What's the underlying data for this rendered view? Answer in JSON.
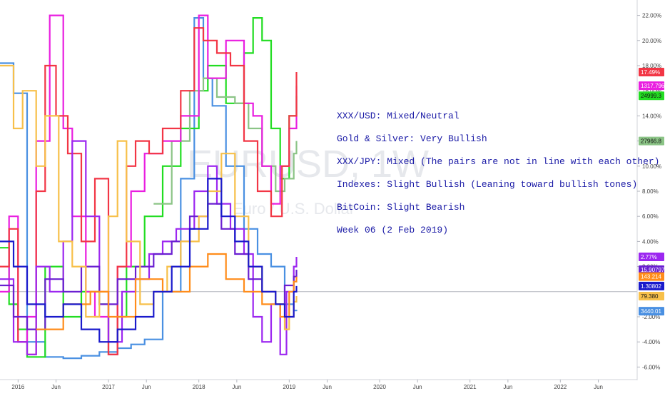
{
  "watermark": {
    "symbol": "EURUSD, 1W",
    "description": "Euro / U.S. Dollar"
  },
  "annotations": [
    "XXX/USD: Mixed/Neutral",
    "Gold & Silver: Very Bullish",
    "XXX/JPY: Mixed (The pairs are not in line with each other)",
    "Indexes: Slight Bullish (Leaning toward bullish tones)",
    "BitCoin: Slight Bearish",
    "Week 06 (2 Feb 2019)"
  ],
  "chart_data": {
    "type": "line",
    "y_axis": {
      "unit": "%",
      "range": [
        -7,
        23
      ],
      "tick_labels": [
        "22.00%",
        "20.00%",
        "18.00%",
        "16.00%",
        "14.00%",
        "12.00%",
        "10.00%",
        "8.00%",
        "6.00%",
        "4.00%",
        "2.00%",
        "-2.00%",
        "-4.00%",
        "-6.00%"
      ],
      "tick_values": [
        22,
        20,
        18,
        16,
        14,
        12,
        10,
        8,
        6,
        4,
        2,
        -2,
        -4,
        -6
      ]
    },
    "x_axis": {
      "range": [
        2015.8,
        2022.85
      ],
      "tick_labels": [
        "2016",
        "Jun",
        "2017",
        "Jun",
        "2018",
        "Jun",
        "2019",
        "Jun",
        "2020",
        "Jun",
        "2021",
        "Jun",
        "2022",
        "Jun"
      ],
      "tick_values": [
        2016.0,
        2016.42,
        2017.0,
        2017.42,
        2018.0,
        2018.42,
        2019.0,
        2019.42,
        2020.0,
        2020.42,
        2021.0,
        2021.42,
        2022.0,
        2022.42
      ]
    },
    "zero_line": 0,
    "price_badges": [
      {
        "label": "17.49%",
        "y": 17.49,
        "color": "#f23645"
      },
      {
        "label": "1317.796",
        "y": 16.4,
        "color": "#e91ee0"
      },
      {
        "label": "24999.3",
        "y": 15.6,
        "color": "#22dd22"
      },
      {
        "label": "27966.8",
        "y": 12.0,
        "color": "#8bc486"
      },
      {
        "label": "2.77%",
        "y": 2.77,
        "color": "#9c27f0"
      },
      {
        "label": "15.90797",
        "y": 1.75,
        "color": "#6a1fd1"
      },
      {
        "label": "143.214",
        "y": 1.2,
        "color": "#ff8c1a"
      },
      {
        "label": "1.30802",
        "y": 0.45,
        "color": "#1a1acc"
      },
      {
        "label": "79.380",
        "y": -0.35,
        "color": "#f7c04a"
      },
      {
        "label": "3440.01",
        "y": -1.55,
        "color": "#4a90e2"
      }
    ],
    "series": [
      {
        "color": "#4a90e2",
        "values": [
          [
            2015.8,
            18.2
          ],
          [
            2015.95,
            15.8
          ],
          [
            2016.1,
            -4
          ],
          [
            2016.3,
            -5.2
          ],
          [
            2016.5,
            -5.3
          ],
          [
            2016.7,
            -5.1
          ],
          [
            2016.9,
            -4.8
          ],
          [
            2017.1,
            -4.5
          ],
          [
            2017.25,
            -4.2
          ],
          [
            2017.4,
            -3.8
          ],
          [
            2017.6,
            0
          ],
          [
            2017.8,
            9
          ],
          [
            2017.95,
            21.8
          ],
          [
            2018.05,
            17
          ],
          [
            2018.15,
            14.8
          ],
          [
            2018.3,
            10
          ],
          [
            2018.5,
            5
          ],
          [
            2018.65,
            3
          ],
          [
            2018.8,
            2
          ],
          [
            2018.95,
            -1
          ],
          [
            2019.05,
            -1.5
          ],
          [
            2019.08,
            -1.55
          ]
        ]
      },
      {
        "color": "#22dd22",
        "values": [
          [
            2015.8,
            3.5
          ],
          [
            2015.9,
            -1
          ],
          [
            2016.0,
            -3
          ],
          [
            2016.1,
            -5.2
          ],
          [
            2016.3,
            2
          ],
          [
            2016.5,
            -2
          ],
          [
            2016.7,
            0
          ],
          [
            2016.9,
            -1
          ],
          [
            2017.0,
            -5
          ],
          [
            2017.1,
            -2
          ],
          [
            2017.2,
            2
          ],
          [
            2017.4,
            6
          ],
          [
            2017.6,
            10
          ],
          [
            2017.8,
            13
          ],
          [
            2018.0,
            16
          ],
          [
            2018.1,
            18
          ],
          [
            2018.3,
            15
          ],
          [
            2018.5,
            19
          ],
          [
            2018.6,
            21.8
          ],
          [
            2018.7,
            20
          ],
          [
            2018.8,
            13
          ],
          [
            2018.9,
            9
          ],
          [
            2019.0,
            14
          ],
          [
            2019.08,
            15.6
          ]
        ]
      },
      {
        "color": "#8bc486",
        "values": [
          [
            2017.5,
            7
          ],
          [
            2017.7,
            12
          ],
          [
            2017.9,
            16
          ],
          [
            2018.05,
            17
          ],
          [
            2018.2,
            15.5
          ],
          [
            2018.4,
            15
          ],
          [
            2018.55,
            13
          ],
          [
            2018.7,
            10
          ],
          [
            2018.85,
            8
          ],
          [
            2018.95,
            9
          ],
          [
            2019.05,
            11
          ],
          [
            2019.08,
            12.0
          ]
        ]
      },
      {
        "color": "#e91ee0",
        "values": [
          [
            2015.8,
            0
          ],
          [
            2015.9,
            6
          ],
          [
            2016.0,
            -4
          ],
          [
            2016.1,
            -2
          ],
          [
            2016.2,
            12
          ],
          [
            2016.35,
            22
          ],
          [
            2016.5,
            13
          ],
          [
            2016.6,
            6
          ],
          [
            2016.75,
            0
          ],
          [
            2016.85,
            -2
          ],
          [
            2017.0,
            -5
          ],
          [
            2017.1,
            2
          ],
          [
            2017.25,
            8
          ],
          [
            2017.4,
            11
          ],
          [
            2017.6,
            12
          ],
          [
            2017.8,
            14
          ],
          [
            2018.0,
            22
          ],
          [
            2018.1,
            17
          ],
          [
            2018.3,
            20
          ],
          [
            2018.5,
            15
          ],
          [
            2018.6,
            14
          ],
          [
            2018.7,
            10
          ],
          [
            2018.8,
            7
          ],
          [
            2018.9,
            10
          ],
          [
            2019.0,
            13
          ],
          [
            2019.08,
            16.4
          ]
        ]
      },
      {
        "color": "#f23645",
        "values": [
          [
            2015.8,
            2
          ],
          [
            2015.9,
            5
          ],
          [
            2016.0,
            -4
          ],
          [
            2016.1,
            -5
          ],
          [
            2016.2,
            8
          ],
          [
            2016.3,
            18
          ],
          [
            2016.42,
            14
          ],
          [
            2016.55,
            11
          ],
          [
            2016.7,
            4
          ],
          [
            2016.85,
            9
          ],
          [
            2017.0,
            -5
          ],
          [
            2017.1,
            2
          ],
          [
            2017.2,
            10
          ],
          [
            2017.3,
            12
          ],
          [
            2017.45,
            11
          ],
          [
            2017.6,
            13
          ],
          [
            2017.8,
            16
          ],
          [
            2017.95,
            21
          ],
          [
            2018.05,
            20
          ],
          [
            2018.2,
            19
          ],
          [
            2018.35,
            18
          ],
          [
            2018.5,
            12
          ],
          [
            2018.65,
            8
          ],
          [
            2018.8,
            6
          ],
          [
            2018.92,
            10
          ],
          [
            2019.0,
            14
          ],
          [
            2019.08,
            17.49
          ]
        ]
      },
      {
        "color": "#9c27f0",
        "values": [
          [
            2015.8,
            1
          ],
          [
            2015.95,
            -4
          ],
          [
            2016.1,
            -5
          ],
          [
            2016.2,
            2
          ],
          [
            2016.35,
            0
          ],
          [
            2016.5,
            4
          ],
          [
            2016.6,
            12
          ],
          [
            2016.75,
            6
          ],
          [
            2016.9,
            0
          ],
          [
            2017.0,
            -4
          ],
          [
            2017.15,
            0
          ],
          [
            2017.3,
            1
          ],
          [
            2017.45,
            3
          ],
          [
            2017.6,
            4
          ],
          [
            2017.75,
            5
          ],
          [
            2017.95,
            8
          ],
          [
            2018.1,
            10
          ],
          [
            2018.2,
            7
          ],
          [
            2018.35,
            5
          ],
          [
            2018.5,
            3
          ],
          [
            2018.6,
            -2
          ],
          [
            2018.7,
            -4
          ],
          [
            2018.8,
            -1
          ],
          [
            2018.9,
            -5
          ],
          [
            2018.97,
            0
          ],
          [
            2019.05,
            2
          ],
          [
            2019.08,
            2.77
          ]
        ]
      },
      {
        "color": "#6a1fd1",
        "values": [
          [
            2015.8,
            0.5
          ],
          [
            2015.95,
            -2
          ],
          [
            2016.1,
            -3
          ],
          [
            2016.3,
            1
          ],
          [
            2016.5,
            0
          ],
          [
            2016.7,
            2
          ],
          [
            2016.9,
            -1
          ],
          [
            2017.1,
            1
          ],
          [
            2017.3,
            2
          ],
          [
            2017.5,
            3
          ],
          [
            2017.7,
            4
          ],
          [
            2017.9,
            6
          ],
          [
            2018.1,
            7
          ],
          [
            2018.25,
            5
          ],
          [
            2018.4,
            3
          ],
          [
            2018.55,
            1
          ],
          [
            2018.7,
            0
          ],
          [
            2018.85,
            -1
          ],
          [
            2018.95,
            0.5
          ],
          [
            2019.05,
            1.2
          ],
          [
            2019.08,
            1.75
          ]
        ]
      },
      {
        "color": "#f7c04a",
        "values": [
          [
            2015.8,
            18
          ],
          [
            2015.95,
            13
          ],
          [
            2016.05,
            16
          ],
          [
            2016.2,
            10
          ],
          [
            2016.3,
            14
          ],
          [
            2016.45,
            4
          ],
          [
            2016.6,
            2
          ],
          [
            2016.75,
            -2
          ],
          [
            2016.9,
            0
          ],
          [
            2017.0,
            6
          ],
          [
            2017.1,
            12
          ],
          [
            2017.2,
            4
          ],
          [
            2017.35,
            -1
          ],
          [
            2017.5,
            0
          ],
          [
            2017.65,
            2
          ],
          [
            2017.8,
            4
          ],
          [
            2018.0,
            6
          ],
          [
            2018.1,
            8
          ],
          [
            2018.25,
            11
          ],
          [
            2018.4,
            6
          ],
          [
            2018.55,
            2
          ],
          [
            2018.7,
            0
          ],
          [
            2018.85,
            -1
          ],
          [
            2018.95,
            -3
          ],
          [
            2019.0,
            -2
          ],
          [
            2019.05,
            -0.8
          ],
          [
            2019.08,
            -0.35
          ]
        ]
      },
      {
        "color": "#ff8c1a",
        "values": [
          [
            2016.2,
            -3
          ],
          [
            2016.5,
            -1
          ],
          [
            2016.8,
            0
          ],
          [
            2017.0,
            -2
          ],
          [
            2017.3,
            1
          ],
          [
            2017.6,
            0
          ],
          [
            2017.9,
            2
          ],
          [
            2018.1,
            3
          ],
          [
            2018.3,
            1
          ],
          [
            2018.5,
            0
          ],
          [
            2018.7,
            -1
          ],
          [
            2018.9,
            -2
          ],
          [
            2019.0,
            0
          ],
          [
            2019.05,
            0.8
          ],
          [
            2019.08,
            1.2
          ]
        ]
      },
      {
        "color": "#1a1acc",
        "values": [
          [
            2015.8,
            4
          ],
          [
            2015.95,
            2
          ],
          [
            2016.1,
            -1
          ],
          [
            2016.3,
            -2
          ],
          [
            2016.5,
            -1
          ],
          [
            2016.7,
            -3
          ],
          [
            2016.9,
            -4
          ],
          [
            2017.1,
            -3
          ],
          [
            2017.3,
            -2
          ],
          [
            2017.5,
            0
          ],
          [
            2017.7,
            2
          ],
          [
            2017.9,
            5
          ],
          [
            2018.1,
            9
          ],
          [
            2018.25,
            6
          ],
          [
            2018.4,
            4
          ],
          [
            2018.55,
            2
          ],
          [
            2018.7,
            0
          ],
          [
            2018.85,
            -1
          ],
          [
            2018.95,
            -2
          ],
          [
            2019.05,
            0
          ],
          [
            2019.08,
            0.45
          ]
        ]
      }
    ]
  }
}
